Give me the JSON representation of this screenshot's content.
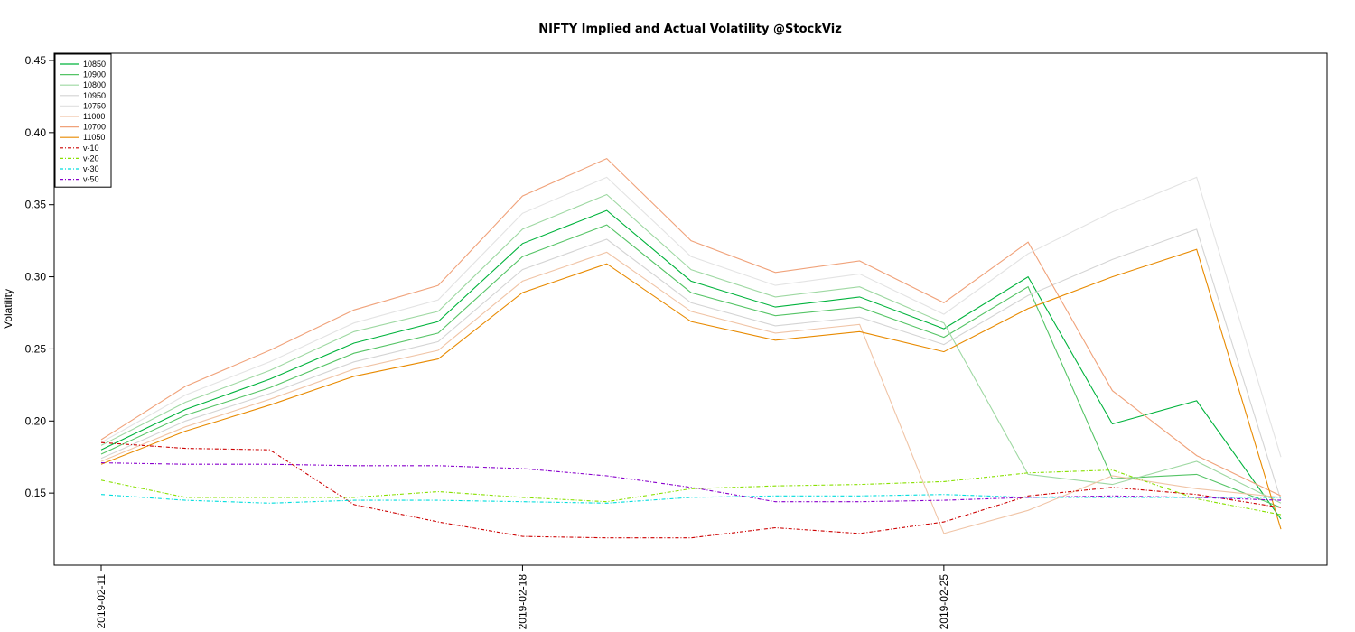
{
  "chart_data": {
    "type": "line",
    "title": "NIFTY Implied and Actual Volatility @StockViz",
    "xlabel": "",
    "ylabel": "Volatility",
    "ylim": [
      0.1,
      0.455
    ],
    "yticks": [
      "0.15",
      "0.20",
      "0.25",
      "0.30",
      "0.35",
      "0.40",
      "0.45"
    ],
    "x": [
      "2019-02-11",
      "2019-02-12",
      "2019-02-13",
      "2019-02-14",
      "2019-02-15",
      "2019-02-18",
      "2019-02-19",
      "2019-02-20",
      "2019-02-21",
      "2019-02-22",
      "2019-02-25",
      "2019-02-26",
      "2019-02-27",
      "2019-02-28",
      "2019-03-01"
    ],
    "xtick_labels": [
      "2019-02-11",
      "2019-02-18",
      "2019-02-25"
    ],
    "legend_position": "top-left",
    "grid": false,
    "series": [
      {
        "name": "10850",
        "color": "#00b33c",
        "dash": "",
        "values": [
          0.18,
          0.208,
          0.229,
          0.254,
          0.269,
          0.323,
          0.346,
          0.297,
          0.279,
          0.286,
          0.264,
          0.3,
          0.198,
          0.214,
          0.132
        ]
      },
      {
        "name": "10900",
        "color": "#55c466",
        "dash": "",
        "values": [
          0.177,
          0.204,
          0.223,
          0.247,
          0.261,
          0.314,
          0.336,
          0.289,
          0.273,
          0.279,
          0.258,
          0.293,
          0.16,
          0.163,
          0.14
        ]
      },
      {
        "name": "10800",
        "color": "#9ed8a2",
        "dash": "",
        "values": [
          0.183,
          0.213,
          0.235,
          0.262,
          0.276,
          0.333,
          0.357,
          0.305,
          0.286,
          0.293,
          0.268,
          0.163,
          0.156,
          0.172,
          0.143
        ]
      },
      {
        "name": "10950",
        "color": "#d4d4d4",
        "dash": "",
        "values": [
          0.174,
          0.2,
          0.219,
          0.241,
          0.255,
          0.305,
          0.326,
          0.282,
          0.266,
          0.272,
          0.253,
          0.287,
          0.312,
          0.333,
          0.145
        ]
      },
      {
        "name": "10750",
        "color": "#e3e3e3",
        "dash": "",
        "values": [
          0.185,
          0.218,
          0.241,
          0.268,
          0.284,
          0.344,
          0.369,
          0.314,
          0.294,
          0.302,
          0.274,
          0.316,
          0.345,
          0.369,
          0.175
        ]
      },
      {
        "name": "11000",
        "color": "#f0c4a6",
        "dash": "",
        "values": [
          0.172,
          0.196,
          0.215,
          0.236,
          0.249,
          0.297,
          0.317,
          0.276,
          0.261,
          0.267,
          0.122,
          0.138,
          0.162,
          0.153,
          0.147
        ]
      },
      {
        "name": "10700",
        "color": "#f0a27a",
        "dash": "",
        "values": [
          0.187,
          0.224,
          0.249,
          0.277,
          0.294,
          0.356,
          0.382,
          0.325,
          0.303,
          0.311,
          0.282,
          0.324,
          0.221,
          0.176,
          0.148
        ]
      },
      {
        "name": "11050",
        "color": "#e88a00",
        "dash": "",
        "values": [
          0.17,
          0.193,
          0.211,
          0.231,
          0.243,
          0.289,
          0.309,
          0.269,
          0.256,
          0.262,
          0.248,
          0.278,
          0.3,
          0.319,
          0.125
        ]
      },
      {
        "name": "v-10",
        "color": "#cc0000",
        "dash": "4,2,1,2",
        "values": [
          0.185,
          0.181,
          0.18,
          0.142,
          0.13,
          0.12,
          0.119,
          0.119,
          0.126,
          0.122,
          0.13,
          0.148,
          0.154,
          0.149,
          0.14
        ]
      },
      {
        "name": "v-20",
        "color": "#88e000",
        "dash": "4,2,1,2",
        "values": [
          0.159,
          0.147,
          0.147,
          0.147,
          0.151,
          0.147,
          0.144,
          0.153,
          0.155,
          0.156,
          0.158,
          0.164,
          0.166,
          0.146,
          0.135
        ]
      },
      {
        "name": "v-30",
        "color": "#00dddd",
        "dash": "4,2,1,2",
        "values": [
          0.149,
          0.145,
          0.143,
          0.145,
          0.145,
          0.144,
          0.143,
          0.147,
          0.148,
          0.148,
          0.149,
          0.147,
          0.147,
          0.147,
          0.147
        ]
      },
      {
        "name": "v-50",
        "color": "#8800cc",
        "dash": "4,2,1,2",
        "values": [
          0.171,
          0.17,
          0.17,
          0.169,
          0.169,
          0.167,
          0.162,
          0.154,
          0.144,
          0.144,
          0.145,
          0.147,
          0.148,
          0.147,
          0.145
        ]
      }
    ]
  }
}
